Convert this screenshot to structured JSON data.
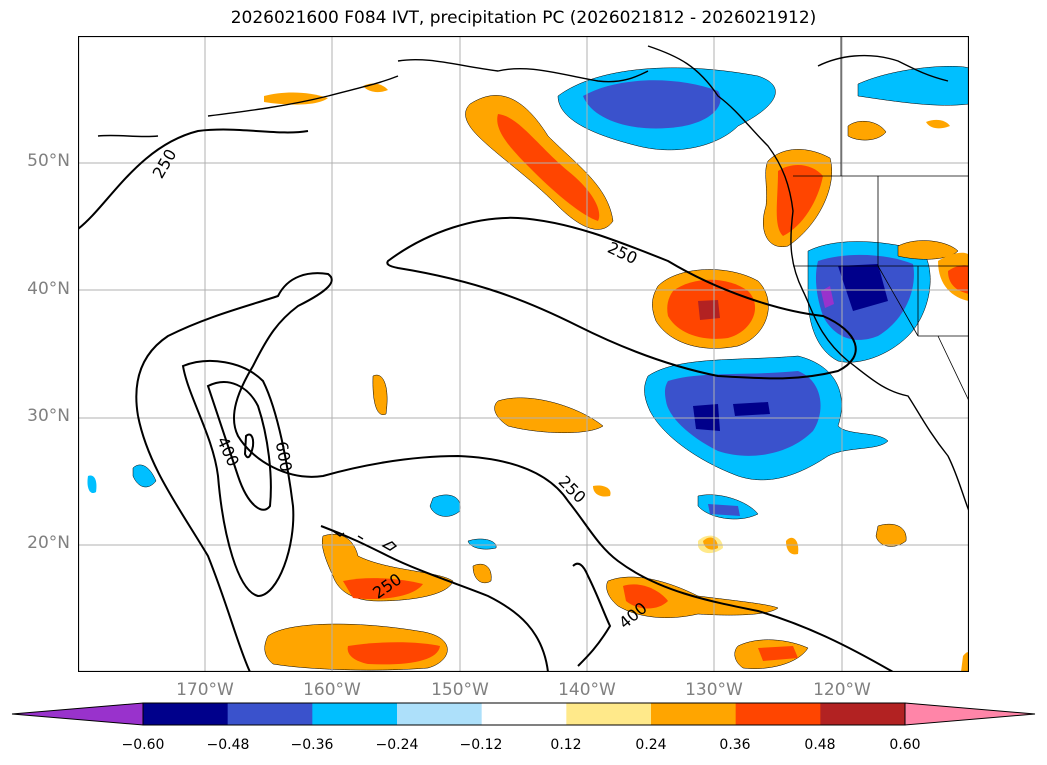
{
  "title": "2026021600 F084 IVT, precipitation PC (2026021812 - 2026021912)",
  "map": {
    "lat_range": [
      10,
      60
    ],
    "lon_range": [
      -180,
      -110
    ],
    "lat_labels": [
      "50°N",
      "40°N",
      "30°N",
      "20°N"
    ],
    "lat_values": [
      50,
      40,
      30,
      20
    ],
    "lon_labels": [
      "170°W",
      "160°W",
      "150°W",
      "140°W",
      "130°W",
      "120°W"
    ],
    "lon_values": [
      -170,
      -160,
      -150,
      -140,
      -130,
      -120
    ],
    "grid": true,
    "ivt_contour_labels": [
      "250",
      "250",
      "400",
      "600",
      "250",
      "250",
      "400"
    ]
  },
  "colorbar": {
    "tick_labels": [
      "−0.60",
      "−0.48",
      "−0.36",
      "−0.24",
      "−0.12",
      "0.12",
      "0.24",
      "0.36",
      "0.48",
      "0.60"
    ],
    "colors": [
      "#9932CC",
      "#00008B",
      "#3A52CC",
      "#00BFFF",
      "#ADE0FA",
      "#FFFFFF",
      "#FFE98A",
      "#FFA500",
      "#FF4500",
      "#B22222",
      "#FF85A8"
    ]
  },
  "colors": {
    "grid": "#b0b0b0",
    "label_gray": "#808080"
  }
}
